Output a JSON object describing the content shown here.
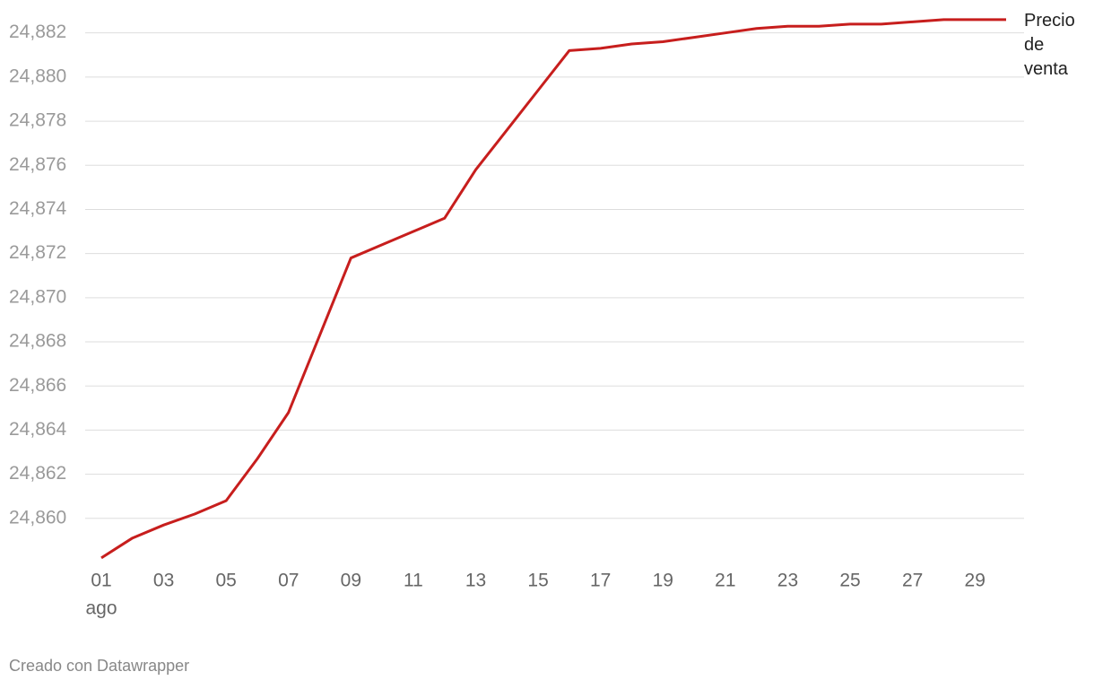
{
  "chart_data": {
    "type": "line",
    "x": [
      1,
      2,
      3,
      4,
      5,
      6,
      7,
      8,
      9,
      10,
      11,
      12,
      13,
      14,
      15,
      16,
      17,
      18,
      19,
      20,
      21,
      22,
      23,
      24,
      25,
      26,
      27,
      28,
      29,
      30
    ],
    "series": [
      {
        "name": "Precio de venta",
        "color": "#c71e1d",
        "values": [
          24.85821,
          24.85911,
          24.8597,
          24.8602,
          24.8608,
          24.8627,
          24.8648,
          24.8683,
          24.8718,
          24.8724,
          24.873,
          24.8736,
          24.8758,
          24.8776,
          24.8794,
          24.8812,
          24.8813,
          24.8815,
          24.8816,
          24.8818,
          24.882,
          24.8822,
          24.8823,
          24.8823,
          24.8824,
          24.8824,
          24.8825,
          24.8826,
          24.8826,
          24.8826
        ]
      }
    ],
    "xlim": [
      1,
      30
    ],
    "xticks": [
      {
        "value": 1,
        "label": "01"
      },
      {
        "value": 3,
        "label": "03"
      },
      {
        "value": 5,
        "label": "05"
      },
      {
        "value": 7,
        "label": "07"
      },
      {
        "value": 9,
        "label": "09"
      },
      {
        "value": 11,
        "label": "11"
      },
      {
        "value": 13,
        "label": "13"
      },
      {
        "value": 15,
        "label": "15"
      },
      {
        "value": 17,
        "label": "17"
      },
      {
        "value": 19,
        "label": "19"
      },
      {
        "value": 21,
        "label": "21"
      },
      {
        "value": 23,
        "label": "23"
      },
      {
        "value": 25,
        "label": "25"
      },
      {
        "value": 27,
        "label": "27"
      },
      {
        "value": 29,
        "label": "29"
      }
    ],
    "xtick_sublabel": "ago",
    "ylim": [
      24.858,
      24.8828
    ],
    "yticks": [
      {
        "value": 24.86,
        "label": "24,860"
      },
      {
        "value": 24.862,
        "label": "24,862"
      },
      {
        "value": 24.864,
        "label": "24,864"
      },
      {
        "value": 24.866,
        "label": "24,866"
      },
      {
        "value": 24.868,
        "label": "24,868"
      },
      {
        "value": 24.87,
        "label": "24,870"
      },
      {
        "value": 24.872,
        "label": "24,872"
      },
      {
        "value": 24.874,
        "label": "24,874"
      },
      {
        "value": 24.876,
        "label": "24,876"
      },
      {
        "value": 24.878,
        "label": "24,878"
      },
      {
        "value": 24.88,
        "label": "24,880"
      },
      {
        "value": 24.882,
        "label": "24,882"
      }
    ],
    "grid": true
  },
  "credit": "Creado con Datawrapper"
}
